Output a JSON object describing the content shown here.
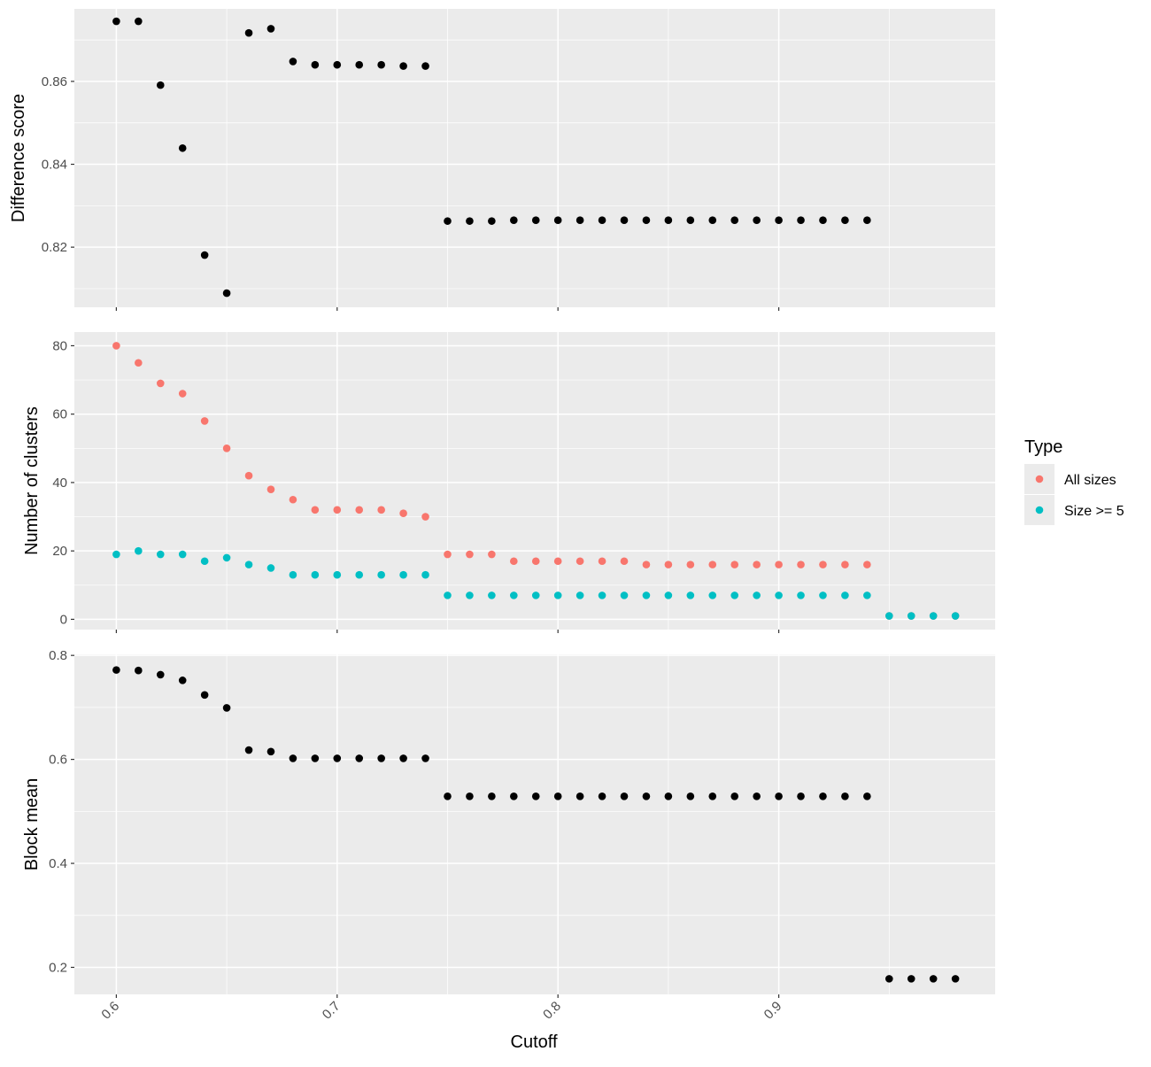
{
  "chart_data": {
    "type": "scatter",
    "xlabel": "Cutoff",
    "xlim": [
      0.581,
      0.998
    ],
    "x_ticks": [
      {
        "value": 0.6,
        "label": "0.6"
      },
      {
        "value": 0.7,
        "label": "0.7"
      },
      {
        "value": 0.8,
        "label": "0.8"
      },
      {
        "value": 0.9,
        "label": "0.9"
      }
    ],
    "grid": true,
    "panels": [
      {
        "ylabel": "Difference score",
        "ylim": [
          0.8055,
          0.8775
        ],
        "y_ticks": [
          {
            "value": 0.82,
            "label": "0.82"
          },
          {
            "value": 0.84,
            "label": "0.84"
          },
          {
            "value": 0.86,
            "label": "0.86"
          }
        ],
        "series": [
          {
            "color": "#000000",
            "x": [
              0.6,
              0.61,
              0.62,
              0.63,
              0.64,
              0.65,
              0.66,
              0.67,
              0.68,
              0.69,
              0.7,
              0.71,
              0.72,
              0.73,
              0.74,
              0.75,
              0.76,
              0.77,
              0.78,
              0.79,
              0.8,
              0.81,
              0.82,
              0.83,
              0.84,
              0.85,
              0.86,
              0.87,
              0.88,
              0.89,
              0.9,
              0.91,
              0.92,
              0.93,
              0.94
            ],
            "y": [
              0.8745,
              0.8745,
              0.8591,
              0.8439,
              0.8181,
              0.8089,
              0.8717,
              0.8727,
              0.8648,
              0.864,
              0.864,
              0.864,
              0.864,
              0.8637,
              0.8637,
              0.8263,
              0.8263,
              0.8263,
              0.8265,
              0.8265,
              0.8265,
              0.8265,
              0.8265,
              0.8265,
              0.8265,
              0.8265,
              0.8265,
              0.8265,
              0.8265,
              0.8265,
              0.8265,
              0.8265,
              0.8265,
              0.8265,
              0.8265
            ]
          }
        ]
      },
      {
        "ylabel": "Number of clusters",
        "ylim": [
          -3,
          84
        ],
        "y_ticks": [
          {
            "value": 0,
            "label": "0"
          },
          {
            "value": 20,
            "label": "20"
          },
          {
            "value": 40,
            "label": "40"
          },
          {
            "value": 60,
            "label": "60"
          },
          {
            "value": 80,
            "label": "80"
          }
        ],
        "series": [
          {
            "name": "All sizes",
            "color": "#F8766D",
            "x": [
              0.6,
              0.61,
              0.62,
              0.63,
              0.64,
              0.65,
              0.66,
              0.67,
              0.68,
              0.69,
              0.7,
              0.71,
              0.72,
              0.73,
              0.74,
              0.75,
              0.76,
              0.77,
              0.78,
              0.79,
              0.8,
              0.81,
              0.82,
              0.83,
              0.84,
              0.85,
              0.86,
              0.87,
              0.88,
              0.89,
              0.9,
              0.91,
              0.92,
              0.93,
              0.94,
              0.95,
              0.96,
              0.97,
              0.98
            ],
            "y": [
              80,
              75,
              69,
              66,
              58,
              50,
              42,
              38,
              35,
              32,
              32,
              32,
              32,
              31,
              30,
              19,
              19,
              19,
              17,
              17,
              17,
              17,
              17,
              17,
              16,
              16,
              16,
              16,
              16,
              16,
              16,
              16,
              16,
              16,
              16,
              1,
              1,
              1,
              1
            ]
          },
          {
            "name": "Size >= 5",
            "color": "#00BFC4",
            "x": [
              0.6,
              0.61,
              0.62,
              0.63,
              0.64,
              0.65,
              0.66,
              0.67,
              0.68,
              0.69,
              0.7,
              0.71,
              0.72,
              0.73,
              0.74,
              0.75,
              0.76,
              0.77,
              0.78,
              0.79,
              0.8,
              0.81,
              0.82,
              0.83,
              0.84,
              0.85,
              0.86,
              0.87,
              0.88,
              0.89,
              0.9,
              0.91,
              0.92,
              0.93,
              0.94,
              0.95,
              0.96,
              0.97,
              0.98
            ],
            "y": [
              19,
              20,
              19,
              19,
              17,
              18,
              16,
              15,
              13,
              13,
              13,
              13,
              13,
              13,
              13,
              7,
              7,
              7,
              7,
              7,
              7,
              7,
              7,
              7,
              7,
              7,
              7,
              7,
              7,
              7,
              7,
              7,
              7,
              7,
              7,
              1,
              1,
              1,
              1
            ]
          }
        ]
      },
      {
        "ylabel": "Block mean",
        "ylim": [
          0.148,
          0.802
        ],
        "y_ticks": [
          {
            "value": 0.2,
            "label": "0.2"
          },
          {
            "value": 0.4,
            "label": "0.4"
          },
          {
            "value": 0.6,
            "label": "0.6"
          },
          {
            "value": 0.8,
            "label": "0.8"
          }
        ],
        "series": [
          {
            "color": "#000000",
            "x": [
              0.6,
              0.61,
              0.62,
              0.63,
              0.64,
              0.65,
              0.66,
              0.67,
              0.68,
              0.69,
              0.7,
              0.71,
              0.72,
              0.73,
              0.74,
              0.75,
              0.76,
              0.77,
              0.78,
              0.79,
              0.8,
              0.81,
              0.82,
              0.83,
              0.84,
              0.85,
              0.86,
              0.87,
              0.88,
              0.89,
              0.9,
              0.91,
              0.92,
              0.93,
              0.94,
              0.95,
              0.96,
              0.97,
              0.98
            ],
            "y": [
              0.772,
              0.771,
              0.763,
              0.752,
              0.724,
              0.699,
              0.618,
              0.615,
              0.602,
              0.602,
              0.602,
              0.602,
              0.602,
              0.602,
              0.602,
              0.529,
              0.529,
              0.529,
              0.529,
              0.529,
              0.529,
              0.529,
              0.529,
              0.529,
              0.529,
              0.529,
              0.529,
              0.529,
              0.529,
              0.529,
              0.529,
              0.529,
              0.529,
              0.529,
              0.529,
              0.178,
              0.178,
              0.178,
              0.178
            ]
          }
        ]
      }
    ],
    "legend": {
      "title": "Type",
      "placement": "right",
      "entries": [
        {
          "label": "All sizes",
          "color": "#F8766D"
        },
        {
          "label": "Size >= 5",
          "color": "#00BFC4"
        }
      ]
    }
  }
}
